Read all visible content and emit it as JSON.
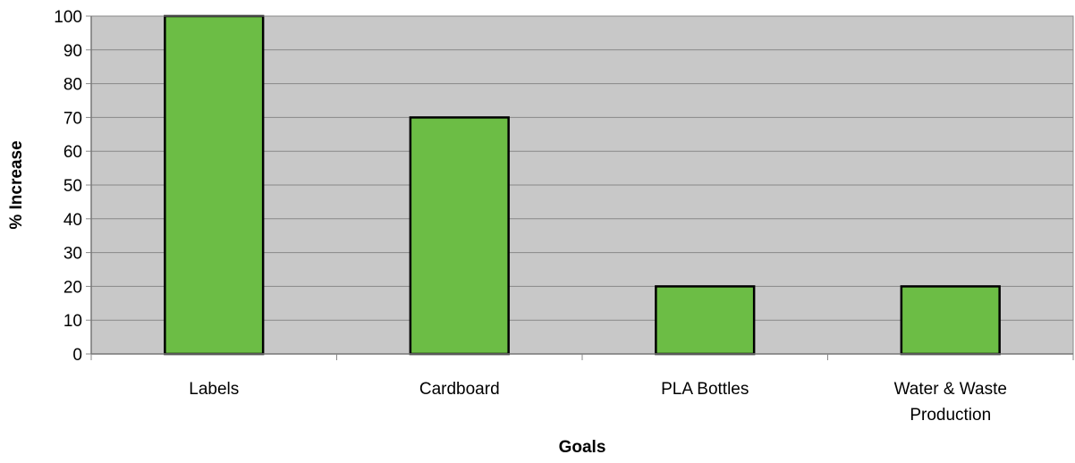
{
  "chart_data": {
    "type": "bar",
    "title": "",
    "categories": [
      "Labels",
      "Cardboard",
      "PLA Bottles",
      "Water & Waste Production"
    ],
    "category_lines": [
      [
        "Labels"
      ],
      [
        "Cardboard"
      ],
      [
        "PLA Bottles"
      ],
      [
        "Water & Waste",
        "Production"
      ]
    ],
    "values": [
      100,
      70,
      20,
      20
    ],
    "xlabel": "Goals",
    "ylabel": "% Increase",
    "ylim": [
      0,
      100
    ],
    "yticks": [
      0,
      10,
      20,
      30,
      40,
      50,
      60,
      70,
      80,
      90,
      100
    ],
    "grid": true,
    "legend": "none",
    "colors": {
      "bar_fill": "#6cbd45",
      "bar_stroke": "#000000",
      "plot_background": "#c8c8c8",
      "grid": "#888888"
    }
  }
}
